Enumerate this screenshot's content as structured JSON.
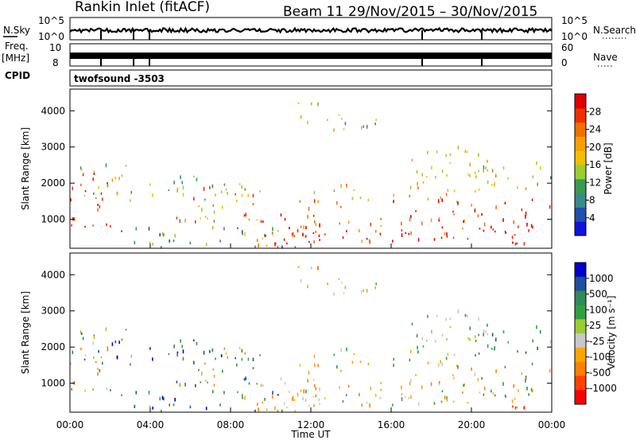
{
  "header": {
    "station": "Rankin Inlet (fitACF)",
    "beam": "Beam 11",
    "date_range": "29/Nov/2015 – 30/Nov/2015"
  },
  "noise_panel": {
    "left_label": "N.Sky",
    "right_label": "N.Search",
    "ticks": [
      "10^5",
      "10^0"
    ],
    "right_ticks": [
      "10^5",
      "10^0"
    ]
  },
  "freq_panel": {
    "left_label_1": "Freq.",
    "left_label_2": "[MHz]",
    "cpid_label": "CPID",
    "right_label": "Nave",
    "ticks": [
      "10",
      "8"
    ],
    "right_ticks": [
      "60",
      "0"
    ]
  },
  "cpid_value": "twofsound  -3503",
  "colors": {
    "power": [
      "#1010e0",
      "#2050b0",
      "#3a8a8a",
      "#3a9a50",
      "#9acd32",
      "#f0c000",
      "#f5a000",
      "#f07000",
      "#f03000",
      "#e00000"
    ],
    "velocity": [
      "#ff0000",
      "#ff4000",
      "#ff7f00",
      "#ffa500",
      "#c8c8c8",
      "#9acd32",
      "#30a040",
      "#2e8b57",
      "#1f4f9f",
      "#0000cc"
    ]
  },
  "chart_data": [
    {
      "type": "heatmap",
      "name": "power",
      "ylabel": "Slant Range [km]",
      "yticks": [
        "1000",
        "2000",
        "3000",
        "4000"
      ],
      "ylim": [
        200,
        4600
      ],
      "xlim": [
        "00:00",
        "00:00"
      ],
      "colorbar_label": "Power [dB]",
      "colorbar_ticks": [
        "4",
        "8",
        "12",
        "16",
        "20",
        "24",
        "28"
      ],
      "colorbar_range": [
        0,
        32
      ]
    },
    {
      "type": "heatmap",
      "name": "velocity",
      "ylabel": "Slant Range [km]",
      "yticks": [
        "1000",
        "2000",
        "3000",
        "4000"
      ],
      "ylim": [
        200,
        4600
      ],
      "xlabel": "Time UT",
      "xticks": [
        "00:00",
        "04:00",
        "08:00",
        "12:00",
        "16:00",
        "20:00",
        "00:00"
      ],
      "colorbar_label": "Velocity [m s⁻¹]",
      "colorbar_ticks": [
        "1000",
        "500",
        "100",
        "25",
        "-25",
        "-100",
        "-500",
        "-1000"
      ]
    }
  ]
}
